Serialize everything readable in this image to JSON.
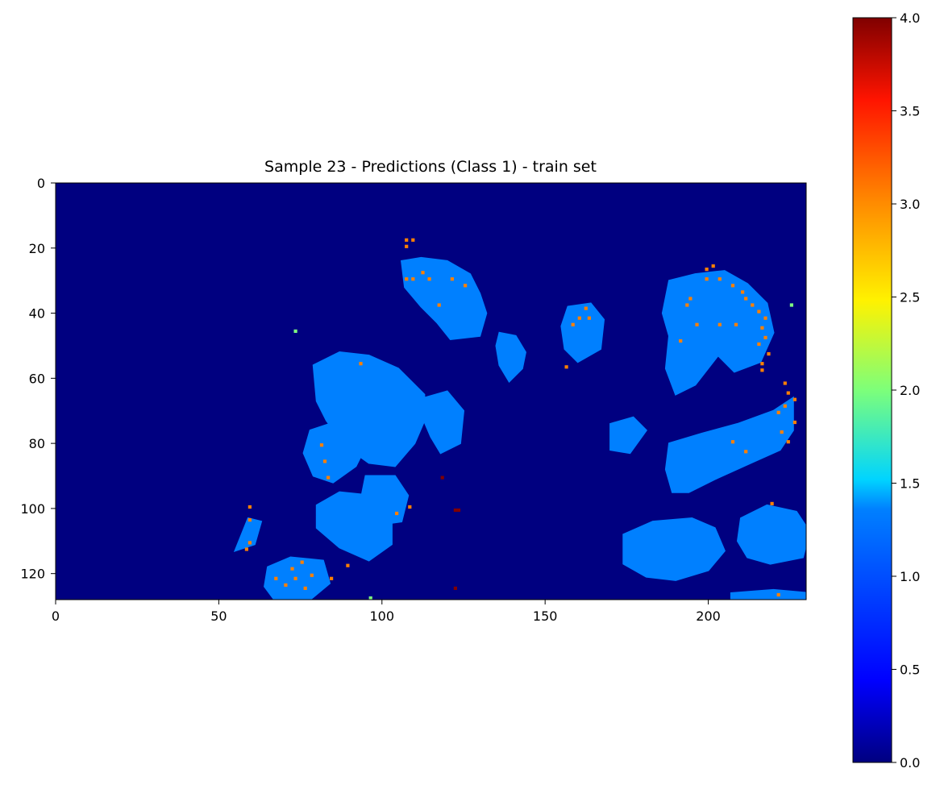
{
  "chart_data": {
    "type": "heatmap",
    "title": "Sample 23 - Predictions (Class 1) - train set",
    "xlabel": "",
    "ylabel": "",
    "xlim": [
      0,
      230
    ],
    "ylim": [
      128,
      0
    ],
    "x_ticks": [
      "0",
      "50",
      "100",
      "150",
      "200"
    ],
    "y_ticks": [
      "0",
      "20",
      "40",
      "60",
      "80",
      "100",
      "120"
    ],
    "grid": false,
    "colormap": "jet",
    "colorbar": {
      "range": [
        0.0,
        4.0
      ],
      "ticks": [
        "0.0",
        "0.5",
        "1.0",
        "1.5",
        "2.0",
        "2.5",
        "3.0",
        "3.5",
        "4.0"
      ]
    },
    "background_value": 0,
    "blob_value": 1,
    "regions": [
      {
        "label": "upper-center blob",
        "points": [
          [
            106,
            24
          ],
          [
            112,
            23
          ],
          [
            120,
            24
          ],
          [
            127,
            28
          ],
          [
            130,
            34
          ],
          [
            132,
            40
          ],
          [
            130,
            47
          ],
          [
            121,
            48
          ],
          [
            117,
            43
          ],
          [
            112,
            38
          ],
          [
            107,
            32
          ]
        ]
      },
      {
        "label": "narrow center blob",
        "points": [
          [
            136,
            46
          ],
          [
            141,
            47
          ],
          [
            144,
            52
          ],
          [
            143,
            57
          ],
          [
            139,
            61
          ],
          [
            136,
            56
          ],
          [
            135,
            50
          ]
        ]
      },
      {
        "label": "mid-right small blob",
        "points": [
          [
            157,
            38
          ],
          [
            164,
            37
          ],
          [
            168,
            42
          ],
          [
            167,
            51
          ],
          [
            160,
            55
          ],
          [
            156,
            51
          ],
          [
            155,
            44
          ]
        ]
      },
      {
        "label": "top-right blob",
        "points": [
          [
            188,
            30
          ],
          [
            196,
            28
          ],
          [
            205,
            27
          ],
          [
            212,
            31
          ],
          [
            218,
            37
          ],
          [
            220,
            46
          ],
          [
            216,
            55
          ],
          [
            208,
            58
          ],
          [
            203,
            53
          ],
          [
            196,
            62
          ],
          [
            190,
            65
          ],
          [
            187,
            57
          ],
          [
            188,
            47
          ],
          [
            186,
            40
          ]
        ]
      },
      {
        "label": "large left blob",
        "points": [
          [
            79,
            56
          ],
          [
            87,
            52
          ],
          [
            96,
            53
          ],
          [
            105,
            57
          ],
          [
            113,
            65
          ],
          [
            113,
            73
          ],
          [
            110,
            80
          ],
          [
            104,
            87
          ],
          [
            96,
            86
          ],
          [
            89,
            81
          ],
          [
            83,
            73
          ],
          [
            80,
            67
          ]
        ]
      },
      {
        "label": "small center blob",
        "points": [
          [
            113,
            66
          ],
          [
            120,
            64
          ],
          [
            125,
            70
          ],
          [
            124,
            80
          ],
          [
            118,
            83
          ],
          [
            115,
            78
          ],
          [
            112,
            71
          ]
        ]
      },
      {
        "label": "left middle blob",
        "points": [
          [
            78,
            76
          ],
          [
            84,
            74
          ],
          [
            92,
            75
          ],
          [
            95,
            81
          ],
          [
            92,
            87
          ],
          [
            85,
            92
          ],
          [
            79,
            90
          ],
          [
            76,
            83
          ]
        ]
      },
      {
        "label": "center-lower blob",
        "points": [
          [
            95,
            90
          ],
          [
            104,
            90
          ],
          [
            108,
            96
          ],
          [
            106,
            104
          ],
          [
            99,
            105
          ],
          [
            93,
            100
          ]
        ]
      },
      {
        "label": "lower-left blob",
        "points": [
          [
            80,
            99
          ],
          [
            87,
            95
          ],
          [
            97,
            96
          ],
          [
            103,
            102
          ],
          [
            103,
            111
          ],
          [
            96,
            116
          ],
          [
            87,
            112
          ],
          [
            80,
            106
          ]
        ]
      },
      {
        "label": "small lower-left blob",
        "points": [
          [
            55,
            113
          ],
          [
            59,
            103
          ],
          [
            63,
            104
          ],
          [
            61,
            111
          ]
        ]
      },
      {
        "label": "bottom-left blob",
        "points": [
          [
            65,
            118
          ],
          [
            72,
            115
          ],
          [
            82,
            116
          ],
          [
            84,
            123
          ],
          [
            78,
            128
          ],
          [
            67,
            128
          ],
          [
            64,
            124
          ]
        ]
      },
      {
        "label": "mid-right blob",
        "points": [
          [
            170,
            74
          ],
          [
            177,
            72
          ],
          [
            181,
            76
          ],
          [
            176,
            83
          ],
          [
            170,
            82
          ]
        ]
      },
      {
        "label": "diagonal right blob",
        "points": [
          [
            188,
            80
          ],
          [
            198,
            77
          ],
          [
            209,
            74
          ],
          [
            220,
            70
          ],
          [
            226,
            66
          ],
          [
            226,
            76
          ],
          [
            222,
            82
          ],
          [
            213,
            86
          ],
          [
            202,
            91
          ],
          [
            194,
            95
          ],
          [
            189,
            95
          ],
          [
            187,
            88
          ]
        ]
      },
      {
        "label": "bottom-center blob",
        "points": [
          [
            174,
            108
          ],
          [
            183,
            104
          ],
          [
            195,
            103
          ],
          [
            202,
            106
          ],
          [
            205,
            113
          ],
          [
            200,
            119
          ],
          [
            190,
            122
          ],
          [
            181,
            121
          ],
          [
            174,
            117
          ]
        ]
      },
      {
        "label": "bottom-right blob",
        "points": [
          [
            210,
            103
          ],
          [
            218,
            99
          ],
          [
            227,
            101
          ],
          [
            231,
            107
          ],
          [
            229,
            115
          ],
          [
            219,
            117
          ],
          [
            212,
            115
          ],
          [
            209,
            110
          ]
        ]
      },
      {
        "label": "bottom-right edge strip",
        "points": [
          [
            207,
            128
          ],
          [
            207,
            126
          ],
          [
            220,
            125
          ],
          [
            231,
            126
          ],
          [
            231,
            128
          ]
        ]
      }
    ],
    "orange_points": [
      [
        107,
        17
      ],
      [
        109,
        17
      ],
      [
        107,
        19
      ],
      [
        112,
        27
      ],
      [
        107,
        29
      ],
      [
        109,
        29
      ],
      [
        114,
        29
      ],
      [
        121,
        29
      ],
      [
        125,
        31
      ],
      [
        117,
        37
      ],
      [
        194,
        35
      ],
      [
        193,
        37
      ],
      [
        199,
        29
      ],
      [
        203,
        29
      ],
      [
        207,
        31
      ],
      [
        210,
        33
      ],
      [
        211,
        35
      ],
      [
        213,
        37
      ],
      [
        215,
        39
      ],
      [
        217,
        41
      ],
      [
        216,
        44
      ],
      [
        217,
        47
      ],
      [
        215,
        49
      ],
      [
        218,
        52
      ],
      [
        216,
        55
      ],
      [
        216,
        57
      ],
      [
        196,
        43
      ],
      [
        203,
        43
      ],
      [
        208,
        43
      ],
      [
        191,
        48
      ],
      [
        199,
        26
      ],
      [
        201,
        25
      ],
      [
        223,
        61
      ],
      [
        224,
        64
      ],
      [
        226,
        66
      ],
      [
        223,
        68
      ],
      [
        221,
        70
      ],
      [
        226,
        73
      ],
      [
        222,
        76
      ],
      [
        224,
        79
      ],
      [
        207,
        79
      ],
      [
        211,
        82
      ],
      [
        160,
        41
      ],
      [
        163,
        41
      ],
      [
        162,
        38
      ],
      [
        158,
        43
      ],
      [
        156,
        56
      ],
      [
        81,
        80
      ],
      [
        82,
        85
      ],
      [
        83,
        90
      ],
      [
        93,
        55
      ],
      [
        108,
        99
      ],
      [
        104,
        101
      ],
      [
        72,
        118
      ],
      [
        75,
        116
      ],
      [
        73,
        121
      ],
      [
        70,
        123
      ],
      [
        76,
        124
      ],
      [
        78,
        120
      ],
      [
        67,
        121
      ],
      [
        84,
        121
      ],
      [
        89,
        117
      ],
      [
        59,
        99
      ],
      [
        59,
        103
      ],
      [
        59,
        110
      ],
      [
        58,
        112
      ],
      [
        219,
        98
      ],
      [
        221,
        126
      ]
    ],
    "green_points": [
      [
        73,
        45
      ],
      [
        96,
        127
      ],
      [
        225,
        37
      ]
    ],
    "dark_red_points": [
      [
        122,
        100
      ],
      [
        123,
        100
      ],
      [
        118,
        90
      ],
      [
        122,
        124
      ]
    ]
  }
}
